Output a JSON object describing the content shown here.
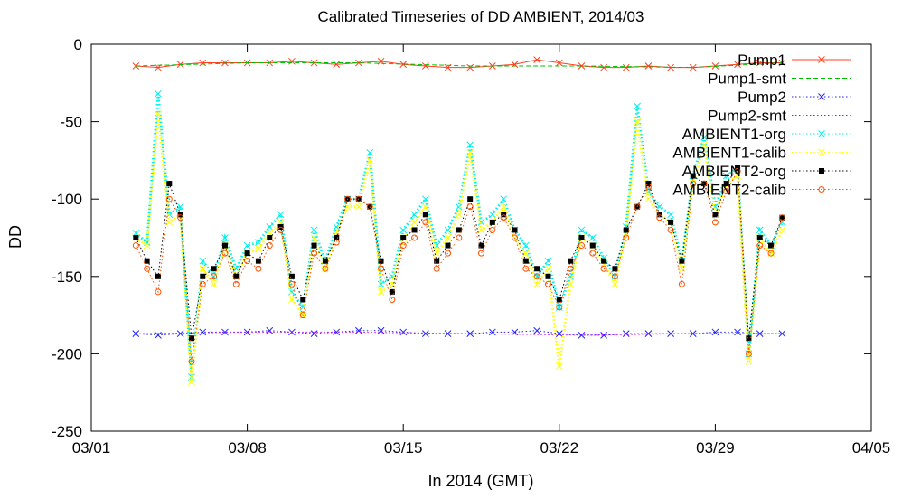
{
  "chart_data": {
    "type": "scatter",
    "title": "Calibrated Timeseries of DD AMBIENT, 2014/03",
    "xlabel": "In 2014 (GMT)",
    "ylabel": "DD",
    "xlim": [
      "2014-03-01",
      "2014-04-05"
    ],
    "ylim": [
      -250,
      0
    ],
    "xticks": [
      {
        "date": "2014-03-01",
        "label": "03/01"
      },
      {
        "date": "2014-03-08",
        "label": "03/08"
      },
      {
        "date": "2014-03-15",
        "label": "03/15"
      },
      {
        "date": "2014-03-22",
        "label": "03/22"
      },
      {
        "date": "2014-03-29",
        "label": "03/29"
      },
      {
        "date": "2014-04-05",
        "label": "04/05"
      }
    ],
    "yticks": [
      0,
      -50,
      -100,
      -150,
      -200,
      -250
    ],
    "legend_position": "top-right",
    "series": [
      {
        "name": "Pump1",
        "color": "#ff4020",
        "marker": "x",
        "line": "solid",
        "x": [
          "2014-03-03",
          "2014-03-04",
          "2014-03-05",
          "2014-03-06",
          "2014-03-07",
          "2014-03-08",
          "2014-03-09",
          "2014-03-10",
          "2014-03-11",
          "2014-03-12",
          "2014-03-13",
          "2014-03-14",
          "2014-03-15",
          "2014-03-16",
          "2014-03-17",
          "2014-03-18",
          "2014-03-19",
          "2014-03-20",
          "2014-03-21",
          "2014-03-22",
          "2014-03-23",
          "2014-03-24",
          "2014-03-25",
          "2014-03-26",
          "2014-03-27",
          "2014-03-28",
          "2014-03-29",
          "2014-03-30",
          "2014-03-31",
          "2014-04-01"
        ],
        "y": [
          -14,
          -15,
          -13,
          -12,
          -12,
          -12,
          -12,
          -11,
          -12,
          -13,
          -12,
          -11,
          -13,
          -14,
          -15,
          -15,
          -14,
          -13,
          -10,
          -12,
          -14,
          -15,
          -15,
          -14,
          -15,
          -15,
          -14,
          -13,
          -12,
          -12
        ]
      },
      {
        "name": "Pump1-smt",
        "color": "#00c000",
        "marker": "none",
        "line": "dashed",
        "x": [
          "2014-03-03",
          "2014-03-08",
          "2014-03-13",
          "2014-03-18",
          "2014-03-23",
          "2014-03-28",
          "2014-04-01"
        ],
        "y": [
          -14,
          -12,
          -12,
          -14,
          -14,
          -15,
          -12
        ]
      },
      {
        "name": "Pump2",
        "color": "#2020ff",
        "marker": "x",
        "line": "dotted",
        "x": [
          "2014-03-03",
          "2014-03-04",
          "2014-03-05",
          "2014-03-06",
          "2014-03-07",
          "2014-03-08",
          "2014-03-09",
          "2014-03-10",
          "2014-03-11",
          "2014-03-12",
          "2014-03-13",
          "2014-03-14",
          "2014-03-15",
          "2014-03-16",
          "2014-03-17",
          "2014-03-18",
          "2014-03-19",
          "2014-03-20",
          "2014-03-21",
          "2014-03-22",
          "2014-03-23",
          "2014-03-24",
          "2014-03-25",
          "2014-03-26",
          "2014-03-27",
          "2014-03-28",
          "2014-03-29",
          "2014-03-30",
          "2014-03-31",
          "2014-04-01"
        ],
        "y": [
          -187,
          -188,
          -187,
          -186,
          -186,
          -186,
          -185,
          -186,
          -187,
          -186,
          -185,
          -185,
          -186,
          -187,
          -187,
          -187,
          -186,
          -186,
          -185,
          -187,
          -188,
          -188,
          -187,
          -187,
          -187,
          -187,
          -186,
          -186,
          -187,
          -187
        ]
      },
      {
        "name": "Pump2-smt",
        "color": "#c000ff",
        "marker": "none",
        "line": "dotted",
        "x": [
          "2014-03-03",
          "2014-03-08",
          "2014-03-13",
          "2014-03-18",
          "2014-03-23",
          "2014-03-28",
          "2014-04-01"
        ],
        "y": [
          -187,
          -186,
          -186,
          -187,
          -188,
          -187,
          -187
        ]
      },
      {
        "name": "AMBIENT1-org",
        "color": "#00f0f0",
        "marker": "x",
        "line": "dotted",
        "x": [
          "2014-03-03",
          "2014-03-03.5",
          "2014-03-04",
          "2014-03-04.5",
          "2014-03-05",
          "2014-03-05.5",
          "2014-03-06",
          "2014-03-06.5",
          "2014-03-07",
          "2014-03-07.5",
          "2014-03-08",
          "2014-03-08.5",
          "2014-03-09",
          "2014-03-09.5",
          "2014-03-10",
          "2014-03-10.5",
          "2014-03-11",
          "2014-03-11.5",
          "2014-03-12",
          "2014-03-12.5",
          "2014-03-13",
          "2014-03-13.5",
          "2014-03-14",
          "2014-03-14.5",
          "2014-03-15",
          "2014-03-15.5",
          "2014-03-16",
          "2014-03-16.5",
          "2014-03-17",
          "2014-03-17.5",
          "2014-03-18",
          "2014-03-18.5",
          "2014-03-19",
          "2014-03-19.5",
          "2014-03-20",
          "2014-03-20.5",
          "2014-03-21",
          "2014-03-21.5",
          "2014-03-22",
          "2014-03-22.5",
          "2014-03-23",
          "2014-03-23.5",
          "2014-03-24",
          "2014-03-24.5",
          "2014-03-25",
          "2014-03-25.5",
          "2014-03-26",
          "2014-03-26.5",
          "2014-03-27",
          "2014-03-27.5",
          "2014-03-28",
          "2014-03-28.5",
          "2014-03-29",
          "2014-03-29.5",
          "2014-03-30",
          "2014-03-30.5",
          "2014-03-31",
          "2014-03-31.5",
          "2014-04-01"
        ],
        "y": [
          -122,
          -128,
          -32,
          -110,
          -105,
          -215,
          -140,
          -150,
          -125,
          -145,
          -130,
          -128,
          -118,
          -110,
          -160,
          -170,
          -120,
          -140,
          -118,
          -100,
          -100,
          -70,
          -155,
          -150,
          -120,
          -110,
          -100,
          -130,
          -120,
          -105,
          -65,
          -115,
          -110,
          -100,
          -120,
          -130,
          -150,
          -140,
          -170,
          -150,
          -120,
          -125,
          -138,
          -150,
          -118,
          -40,
          -95,
          -105,
          -110,
          -140,
          -85,
          -60,
          -105,
          -85,
          -80,
          -200,
          -120,
          -130,
          -115
        ]
      },
      {
        "name": "AMBIENT1-calib",
        "color": "#ffff00",
        "marker": "x",
        "line": "dotted",
        "x": [
          "2014-03-03",
          "2014-03-03.5",
          "2014-03-04",
          "2014-03-04.5",
          "2014-03-05",
          "2014-03-05.5",
          "2014-03-06",
          "2014-03-06.5",
          "2014-03-07",
          "2014-03-07.5",
          "2014-03-08",
          "2014-03-08.5",
          "2014-03-09",
          "2014-03-09.5",
          "2014-03-10",
          "2014-03-10.5",
          "2014-03-11",
          "2014-03-11.5",
          "2014-03-12",
          "2014-03-12.5",
          "2014-03-13",
          "2014-03-13.5",
          "2014-03-14",
          "2014-03-14.5",
          "2014-03-15",
          "2014-03-15.5",
          "2014-03-16",
          "2014-03-16.5",
          "2014-03-17",
          "2014-03-17.5",
          "2014-03-18",
          "2014-03-18.5",
          "2014-03-19",
          "2014-03-19.5",
          "2014-03-20",
          "2014-03-20.5",
          "2014-03-21",
          "2014-03-21.5",
          "2014-03-22",
          "2014-03-22.5",
          "2014-03-23",
          "2014-03-23.5",
          "2014-03-24",
          "2014-03-24.5",
          "2014-03-25",
          "2014-03-25.5",
          "2014-03-26",
          "2014-03-26.5",
          "2014-03-27",
          "2014-03-27.5",
          "2014-03-28",
          "2014-03-28.5",
          "2014-03-29",
          "2014-03-29.5",
          "2014-03-30",
          "2014-03-30.5",
          "2014-03-31",
          "2014-03-31.5",
          "2014-04-01"
        ],
        "y": [
          -125,
          -130,
          -45,
          -115,
          -110,
          -218,
          -145,
          -155,
          -130,
          -150,
          -135,
          -132,
          -122,
          -115,
          -165,
          -175,
          -125,
          -145,
          -122,
          -105,
          -105,
          -75,
          -160,
          -155,
          -125,
          -115,
          -105,
          -135,
          -125,
          -110,
          -70,
          -120,
          -115,
          -105,
          -125,
          -135,
          -155,
          -145,
          -208,
          -155,
          -125,
          -130,
          -142,
          -155,
          -122,
          -50,
          -100,
          -110,
          -115,
          -145,
          -90,
          -65,
          -110,
          -90,
          -85,
          -205,
          -125,
          -135,
          -120
        ]
      },
      {
        "name": "AMBIENT2-org",
        "color": "#000000",
        "marker": "square",
        "line": "dotted",
        "x": [
          "2014-03-03",
          "2014-03-03.5",
          "2014-03-04",
          "2014-03-04.5",
          "2014-03-05",
          "2014-03-05.5",
          "2014-03-06",
          "2014-03-06.5",
          "2014-03-07",
          "2014-03-07.5",
          "2014-03-08",
          "2014-03-08.5",
          "2014-03-09",
          "2014-03-09.5",
          "2014-03-10",
          "2014-03-10.5",
          "2014-03-11",
          "2014-03-11.5",
          "2014-03-12",
          "2014-03-12.5",
          "2014-03-13",
          "2014-03-13.5",
          "2014-03-14",
          "2014-03-14.5",
          "2014-03-15",
          "2014-03-15.5",
          "2014-03-16",
          "2014-03-16.5",
          "2014-03-17",
          "2014-03-17.5",
          "2014-03-18",
          "2014-03-18.5",
          "2014-03-19",
          "2014-03-19.5",
          "2014-03-20",
          "2014-03-20.5",
          "2014-03-21",
          "2014-03-21.5",
          "2014-03-22",
          "2014-03-22.5",
          "2014-03-23",
          "2014-03-23.5",
          "2014-03-24",
          "2014-03-24.5",
          "2014-03-25",
          "2014-03-25.5",
          "2014-03-26",
          "2014-03-26.5",
          "2014-03-27",
          "2014-03-27.5",
          "2014-03-28",
          "2014-03-28.5",
          "2014-03-29",
          "2014-03-29.5",
          "2014-03-30",
          "2014-03-30.5",
          "2014-03-31",
          "2014-03-31.5",
          "2014-04-01"
        ],
        "y": [
          -125,
          -140,
          -150,
          -90,
          -110,
          -190,
          -150,
          -145,
          -130,
          -150,
          -135,
          -140,
          -125,
          -118,
          -150,
          -165,
          -130,
          -140,
          -125,
          -100,
          -100,
          -105,
          -140,
          -160,
          -125,
          -120,
          -110,
          -140,
          -130,
          -120,
          -100,
          -130,
          -115,
          -110,
          -120,
          -140,
          -145,
          -150,
          -165,
          -140,
          -125,
          -130,
          -140,
          -145,
          -120,
          -105,
          -90,
          -110,
          -115,
          -140,
          -85,
          -90,
          -110,
          -90,
          -80,
          -190,
          -125,
          -130,
          -112
        ]
      },
      {
        "name": "AMBIENT2-calib",
        "color": "#ff5000",
        "marker": "circle",
        "line": "dotted",
        "x": [
          "2014-03-03",
          "2014-03-03.5",
          "2014-03-04",
          "2014-03-04.5",
          "2014-03-05",
          "2014-03-05.5",
          "2014-03-06",
          "2014-03-06.5",
          "2014-03-07",
          "2014-03-07.5",
          "2014-03-08",
          "2014-03-08.5",
          "2014-03-09",
          "2014-03-09.5",
          "2014-03-10",
          "2014-03-10.5",
          "2014-03-11",
          "2014-03-11.5",
          "2014-03-12",
          "2014-03-12.5",
          "2014-03-13",
          "2014-03-13.5",
          "2014-03-14",
          "2014-03-14.5",
          "2014-03-15",
          "2014-03-15.5",
          "2014-03-16",
          "2014-03-16.5",
          "2014-03-17",
          "2014-03-17.5",
          "2014-03-18",
          "2014-03-18.5",
          "2014-03-19",
          "2014-03-19.5",
          "2014-03-20",
          "2014-03-20.5",
          "2014-03-21",
          "2014-03-21.5",
          "2014-03-22",
          "2014-03-22.5",
          "2014-03-23",
          "2014-03-23.5",
          "2014-03-24",
          "2014-03-24.5",
          "2014-03-25",
          "2014-03-25.5",
          "2014-03-26",
          "2014-03-26.5",
          "2014-03-27",
          "2014-03-27.5",
          "2014-03-28",
          "2014-03-28.5",
          "2014-03-29",
          "2014-03-29.5",
          "2014-03-30",
          "2014-03-30.5",
          "2014-03-31",
          "2014-03-31.5",
          "2014-04-01"
        ],
        "y": [
          -130,
          -145,
          -160,
          -100,
          -112,
          -205,
          -155,
          -150,
          -135,
          -155,
          -140,
          -145,
          -130,
          -120,
          -155,
          -175,
          -135,
          -145,
          -128,
          -100,
          -100,
          -105,
          -145,
          -165,
          -130,
          -125,
          -115,
          -145,
          -135,
          -125,
          -105,
          -135,
          -120,
          -112,
          -125,
          -145,
          -150,
          -155,
          -170,
          -145,
          -130,
          -135,
          -145,
          -150,
          -125,
          -105,
          -92,
          -112,
          -120,
          -155,
          -90,
          -90,
          -115,
          -95,
          -82,
          -200,
          -130,
          -135,
          -112
        ]
      }
    ]
  }
}
